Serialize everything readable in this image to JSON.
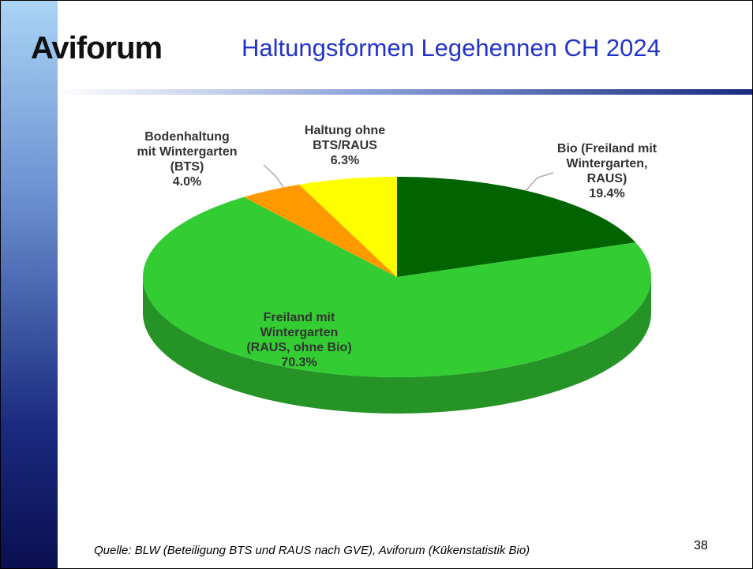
{
  "logo": "Aviforum",
  "source": "Quelle:  BLW (Beteiligung BTS und RAUS nach GVE), Aviforum (Kükenstatistik Bio)",
  "page_number": "38",
  "chart_data": {
    "type": "pie",
    "title": "Haltungsformen Legehennen CH 2024",
    "categories": [
      "Bio (Freiland mit\nWintergarten,\nRAUS)",
      "Freiland mit\nWintergarten\n(RAUS, ohne Bio)",
      "Bodenhaltung\nmit Wintergarten\n(BTS)",
      "Haltung ohne\nBTS/RAUS"
    ],
    "values": [
      19.4,
      70.3,
      4.0,
      6.3
    ],
    "value_labels": [
      "19.4%",
      "70.3%",
      "4.0%",
      "6.3%"
    ],
    "colors": [
      "#006400",
      "#33cc33",
      "#ff9900",
      "#ffff00"
    ]
  }
}
